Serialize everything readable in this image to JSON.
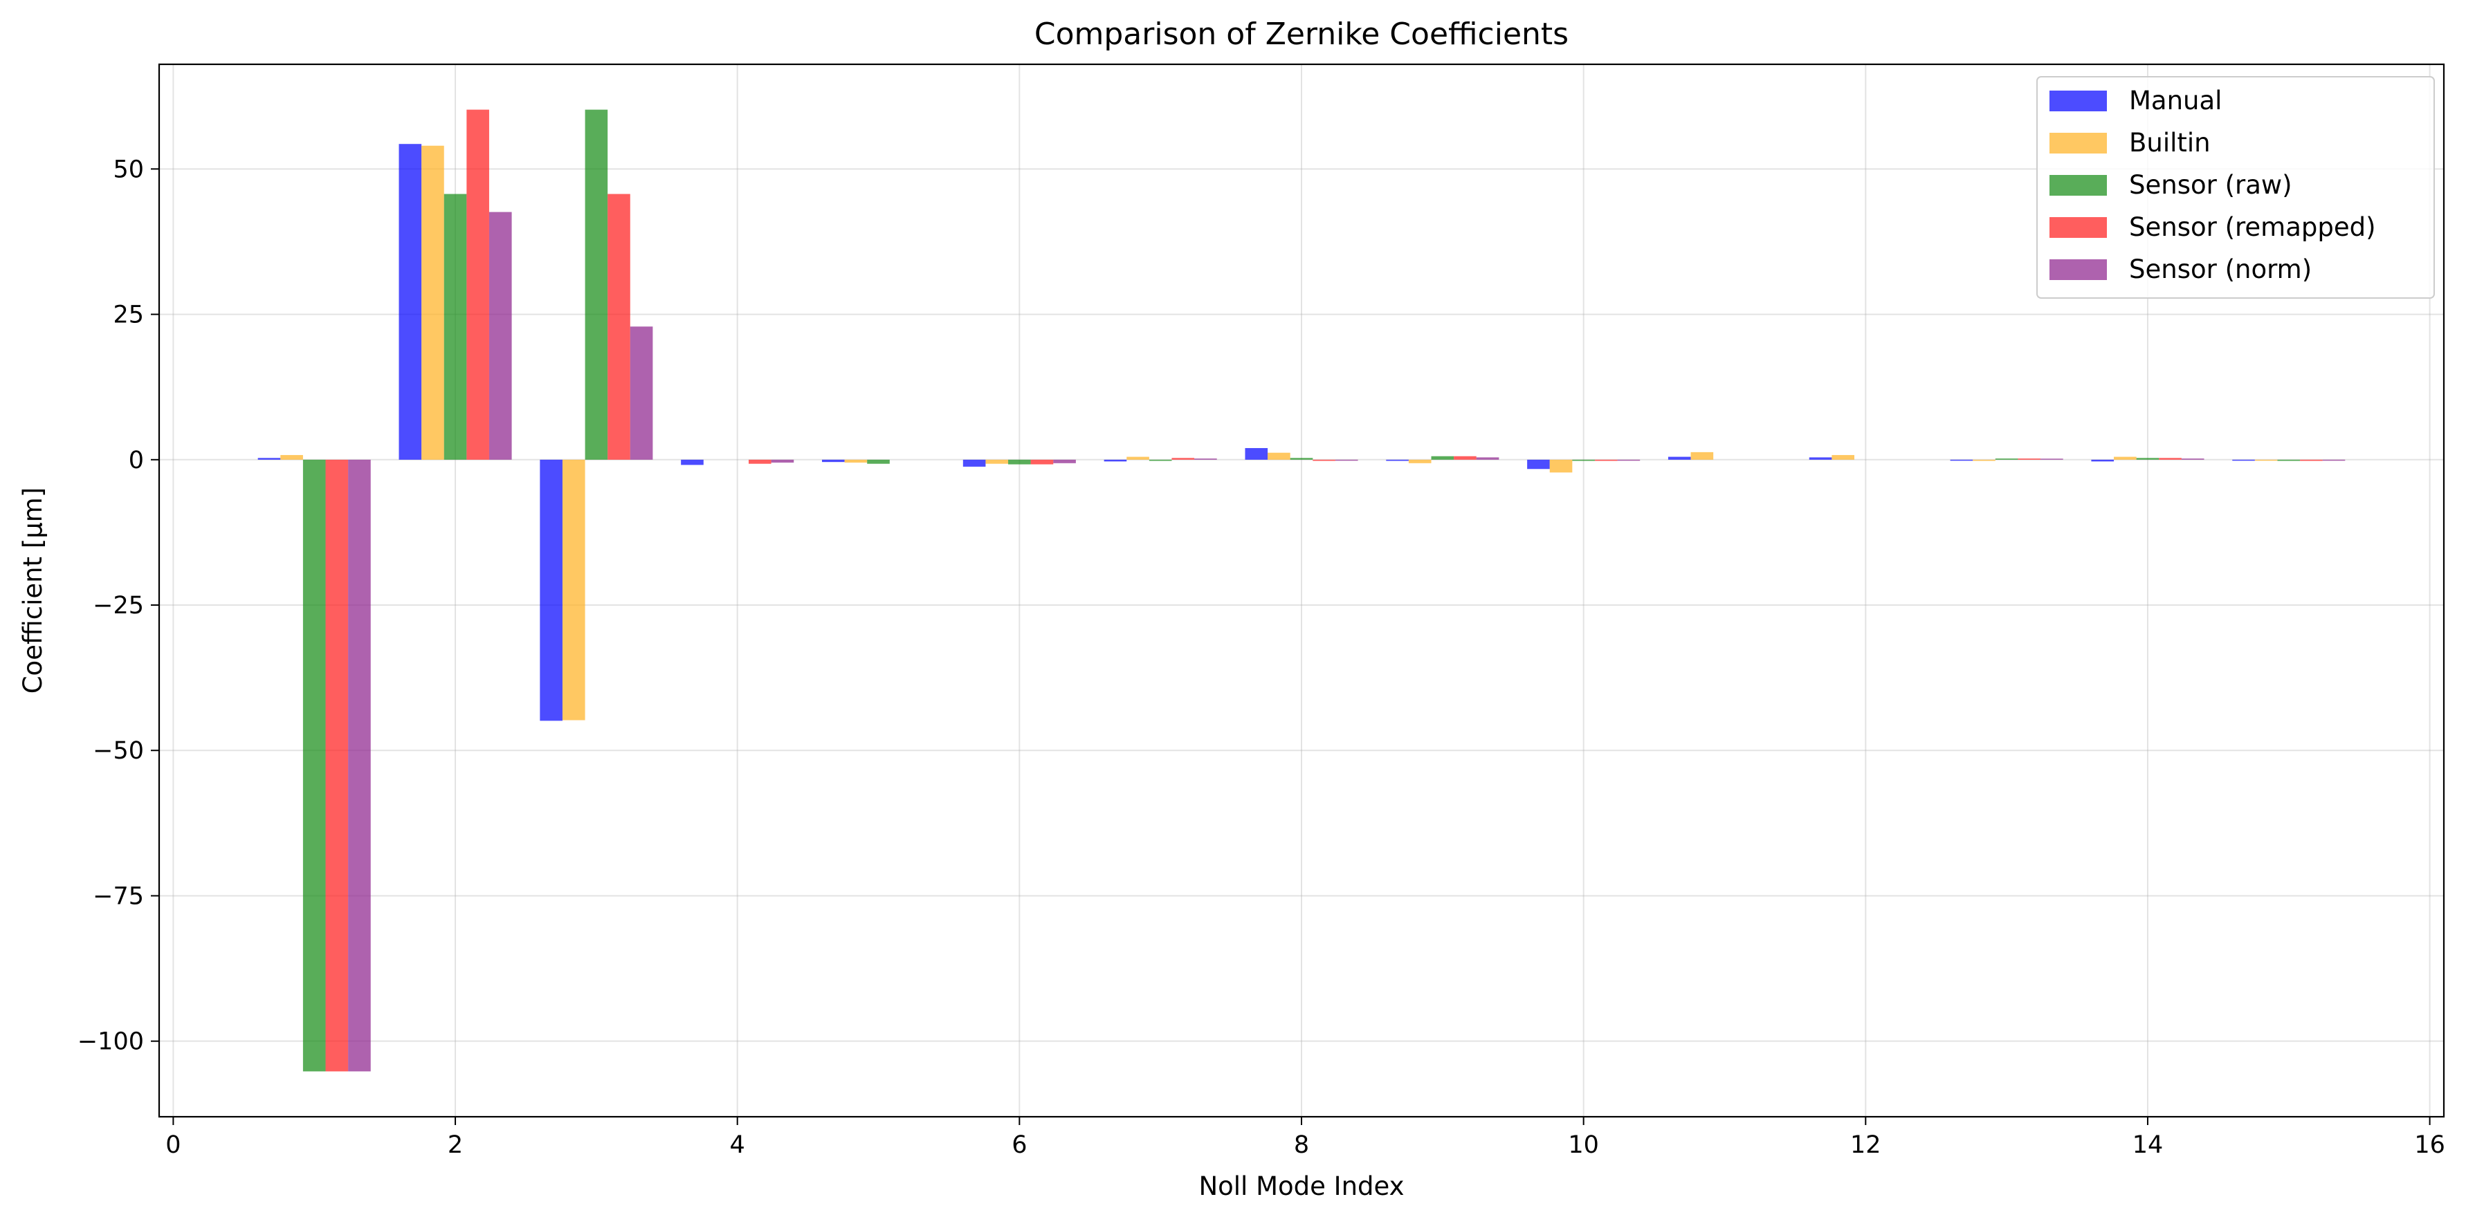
{
  "chart_data": {
    "type": "bar",
    "title": "Comparison of Zernike Coefficients",
    "xlabel": "Noll Mode Index",
    "ylabel": "Coefficient [µm]",
    "xlim": [
      -0.1,
      16.1
    ],
    "ylim": [
      -113,
      68
    ],
    "xticks": [
      0,
      2,
      4,
      6,
      8,
      10,
      12,
      14,
      16
    ],
    "yticks": [
      50,
      25,
      0,
      -25,
      -50,
      -75,
      -100
    ],
    "ytick_labels": [
      "50",
      "25",
      "0",
      "−25",
      "−50",
      "−75",
      "−100"
    ],
    "grid": true,
    "legend_position": "top-right",
    "categories": [
      1,
      2,
      3,
      4,
      5,
      6,
      7,
      8,
      9,
      10,
      11,
      12,
      13,
      14,
      15
    ],
    "bar_width": 0.16,
    "series": [
      {
        "name": "Manual",
        "color": "#0000ff",
        "values": [
          0.3,
          54.3,
          -44.9,
          -0.9,
          -0.4,
          -1.2,
          -0.3,
          2.0,
          -0.2,
          -1.6,
          0.5,
          0.4,
          -0.1,
          -0.3,
          -0.1
        ]
      },
      {
        "name": "Builtin",
        "color": "#ffb020",
        "values": [
          0.8,
          54.0,
          -44.8,
          0.0,
          -0.5,
          -0.7,
          0.5,
          1.2,
          -0.6,
          -2.2,
          1.3,
          0.8,
          -0.2,
          0.5,
          -0.1
        ]
      },
      {
        "name": "Sensor (raw)",
        "color": "#138a13",
        "values": [
          -105.2,
          45.7,
          60.2,
          0.0,
          -0.7,
          -0.8,
          -0.2,
          0.3,
          0.6,
          -0.2,
          0.0,
          0.0,
          0.2,
          0.3,
          -0.2
        ]
      },
      {
        "name": "Sensor (remapped)",
        "color": "#ff1a1a",
        "values": [
          -105.2,
          60.2,
          45.7,
          -0.7,
          0.0,
          -0.8,
          0.3,
          -0.2,
          0.6,
          -0.2,
          0.0,
          0.0,
          0.2,
          0.3,
          -0.2
        ]
      },
      {
        "name": "Sensor (norm)",
        "color": "#8b1f8b",
        "values": [
          -105.2,
          42.6,
          22.9,
          -0.5,
          0.0,
          -0.6,
          0.2,
          -0.1,
          0.4,
          -0.1,
          0.0,
          0.0,
          0.1,
          0.2,
          -0.1
        ]
      }
    ]
  }
}
